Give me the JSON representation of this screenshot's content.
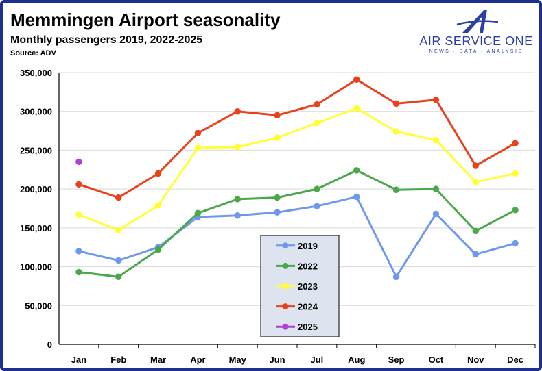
{
  "header": {
    "title": "Memmingen Airport seasonality",
    "subtitle": "Monthly passengers 2019, 2022-2025",
    "source": "Source: ADV"
  },
  "logo": {
    "name": "AIR SERVICE ONE",
    "tagline": "NEWS · DATA · ANALYSIS",
    "color": "#2b3fa6"
  },
  "chart_data": {
    "type": "line",
    "categories": [
      "Jan",
      "Feb",
      "Mar",
      "Apr",
      "May",
      "Jun",
      "Jul",
      "Aug",
      "Sep",
      "Oct",
      "Nov",
      "Dec"
    ],
    "ylim": [
      0,
      350000
    ],
    "yticks": [
      0,
      50000,
      100000,
      150000,
      200000,
      250000,
      300000,
      350000
    ],
    "ytick_labels": [
      "0",
      "50,000",
      "100,000",
      "150,000",
      "200,000",
      "250,000",
      "300,000",
      "350,000"
    ],
    "grid": "horizontal",
    "legend_position": "bottom-center",
    "series": [
      {
        "name": "2019",
        "color": "#6e97ee",
        "values": [
          120000,
          108000,
          125000,
          164000,
          166000,
          170000,
          178000,
          190000,
          87000,
          168000,
          116000,
          130000
        ]
      },
      {
        "name": "2022",
        "color": "#4aa84a",
        "values": [
          93000,
          87000,
          122000,
          169000,
          187000,
          189000,
          200000,
          224000,
          199000,
          200000,
          146000,
          173000
        ]
      },
      {
        "name": "2023",
        "color": "#ffff33",
        "values": [
          167000,
          147000,
          179000,
          253000,
          254000,
          266000,
          285000,
          304000,
          274000,
          263000,
          209000,
          220000
        ]
      },
      {
        "name": "2024",
        "color": "#e8411b",
        "values": [
          206000,
          189000,
          220000,
          272000,
          300000,
          295000,
          309000,
          341000,
          310000,
          315000,
          230000,
          259000
        ]
      },
      {
        "name": "2025",
        "color": "#b23fd3",
        "values": [
          235000,
          null,
          null,
          null,
          null,
          null,
          null,
          null,
          null,
          null,
          null,
          null
        ]
      }
    ]
  }
}
